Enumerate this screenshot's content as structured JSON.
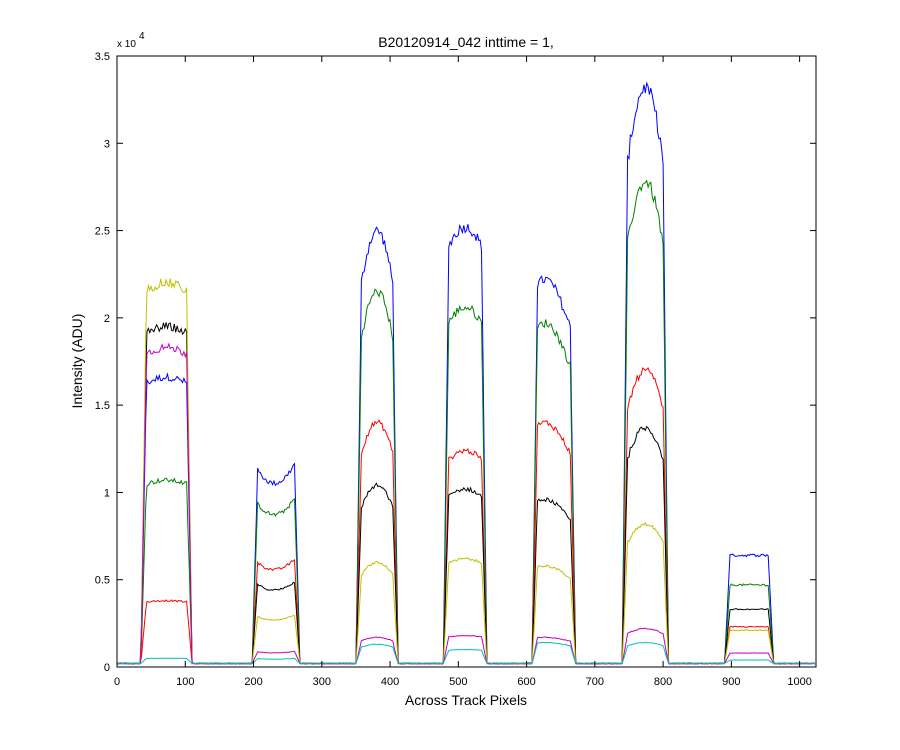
{
  "chart_data": {
    "type": "line",
    "title": "B20120914_042 inttime = 1,",
    "xlabel": "Across Track Pixels",
    "ylabel": "Intensity (ADU)",
    "y_exponent_label": "x 10",
    "y_exponent_power": "4",
    "xlim": [
      0,
      1024
    ],
    "ylim": [
      0,
      3.5
    ],
    "xticks": [
      0,
      100,
      200,
      300,
      400,
      500,
      600,
      700,
      800,
      900,
      1000
    ],
    "yticks": [
      0,
      0.5,
      1,
      1.5,
      2,
      2.5,
      3,
      3.5
    ],
    "ytick_labels": [
      "0",
      "0.5",
      "1",
      "1.5",
      "2",
      "2.5",
      "3",
      "3.5"
    ],
    "grid": false,
    "baseline": 0.02,
    "segments": [
      {
        "x_start": 35,
        "x_end": 110,
        "shape": "flat_noisy"
      },
      {
        "x_start": 198,
        "x_end": 268,
        "shape": "dip"
      },
      {
        "x_start": 350,
        "x_end": 412,
        "shape": "peak"
      },
      {
        "x_start": 478,
        "x_end": 542,
        "shape": "plateau"
      },
      {
        "x_start": 608,
        "x_end": 672,
        "shape": "peak_left"
      },
      {
        "x_start": 740,
        "x_end": 808,
        "shape": "peak"
      },
      {
        "x_start": 890,
        "x_end": 962,
        "shape": "flat"
      }
    ],
    "series": [
      {
        "color": "#0000ff",
        "segment_levels": [
          1.66,
          1.17,
          2.5,
          2.52,
          2.22,
          3.32,
          0.64
        ]
      },
      {
        "color": "#008000",
        "segment_levels": [
          1.07,
          0.97,
          2.15,
          2.06,
          1.97,
          2.78,
          0.47
        ]
      },
      {
        "color": "#ff0000",
        "segment_levels": [
          0.38,
          0.62,
          1.4,
          1.24,
          1.4,
          1.7,
          0.23
        ]
      },
      {
        "color": "#000000",
        "segment_levels": [
          1.95,
          0.49,
          1.04,
          1.02,
          0.96,
          1.37,
          0.33
        ]
      },
      {
        "color": "#c0c000",
        "segment_levels": [
          2.2,
          0.3,
          0.6,
          0.62,
          0.58,
          0.82,
          0.21
        ]
      },
      {
        "color": "#c000c0",
        "segment_levels": [
          1.83,
          0.09,
          0.17,
          0.18,
          0.17,
          0.22,
          0.08
        ]
      },
      {
        "color": "#00c0c0",
        "segment_levels": [
          0.05,
          0.05,
          0.13,
          0.1,
          0.14,
          0.14,
          0.04
        ]
      }
    ]
  }
}
